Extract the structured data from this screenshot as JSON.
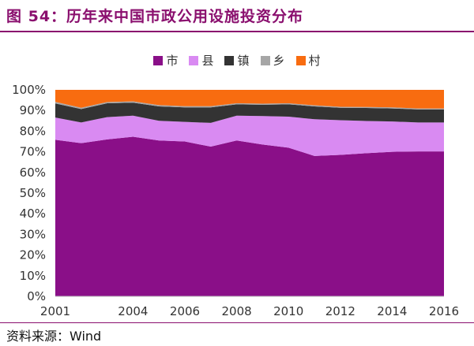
{
  "header": {
    "title": "图 54：历年来中国市政公用设施投资分布"
  },
  "source": {
    "text": "资料来源：Wind"
  },
  "colors": {
    "city": "#8a0f88",
    "county": "#d98af2",
    "town": "#333333",
    "township": "#a6a6a6",
    "village": "#f86c10",
    "title": "#8a0f6e"
  },
  "chart_data": {
    "type": "area",
    "stacked": "percent",
    "x": [
      2001,
      2002,
      2003,
      2004,
      2005,
      2006,
      2007,
      2008,
      2009,
      2010,
      2011,
      2012,
      2013,
      2014,
      2015,
      2016
    ],
    "xticks": [
      2001,
      2004,
      2006,
      2008,
      2010,
      2012,
      2014,
      2016
    ],
    "yticks": [
      "0%",
      "10%",
      "20%",
      "30%",
      "40%",
      "50%",
      "60%",
      "70%",
      "80%",
      "90%",
      "100%"
    ],
    "ylim": [
      0,
      100
    ],
    "legend_position": "top",
    "series": [
      {
        "name": "市",
        "color": "#8a0f88",
        "values": [
          75.8,
          74.2,
          76.0,
          77.3,
          75.5,
          75.0,
          72.5,
          75.5,
          73.5,
          72.0,
          68.0,
          68.5,
          69.3,
          70.0,
          70.2,
          70.2
        ]
      },
      {
        "name": "县",
        "color": "#d98af2",
        "values": [
          10.8,
          10.0,
          10.8,
          10.2,
          9.5,
          9.5,
          11.5,
          12.0,
          13.8,
          15.0,
          17.8,
          16.8,
          15.6,
          14.7,
          14.0,
          14.0
        ]
      },
      {
        "name": "镇",
        "color": "#333333",
        "values": [
          6.8,
          6.5,
          6.7,
          6.3,
          7.0,
          7.0,
          7.5,
          5.5,
          5.5,
          6.0,
          6.2,
          6.0,
          6.3,
          6.3,
          6.3,
          6.3
        ]
      },
      {
        "name": "乡",
        "color": "#a6a6a6",
        "values": [
          0.8,
          0.6,
          0.6,
          0.6,
          0.6,
          0.6,
          0.6,
          0.5,
          0.5,
          0.5,
          0.5,
          0.5,
          0.5,
          0.5,
          0.5,
          0.5
        ]
      },
      {
        "name": "村",
        "color": "#f86c10",
        "values": [
          5.8,
          8.7,
          5.9,
          5.6,
          7.4,
          7.9,
          7.9,
          6.5,
          6.7,
          6.5,
          7.5,
          8.2,
          8.3,
          8.5,
          9.0,
          9.0
        ]
      }
    ]
  }
}
